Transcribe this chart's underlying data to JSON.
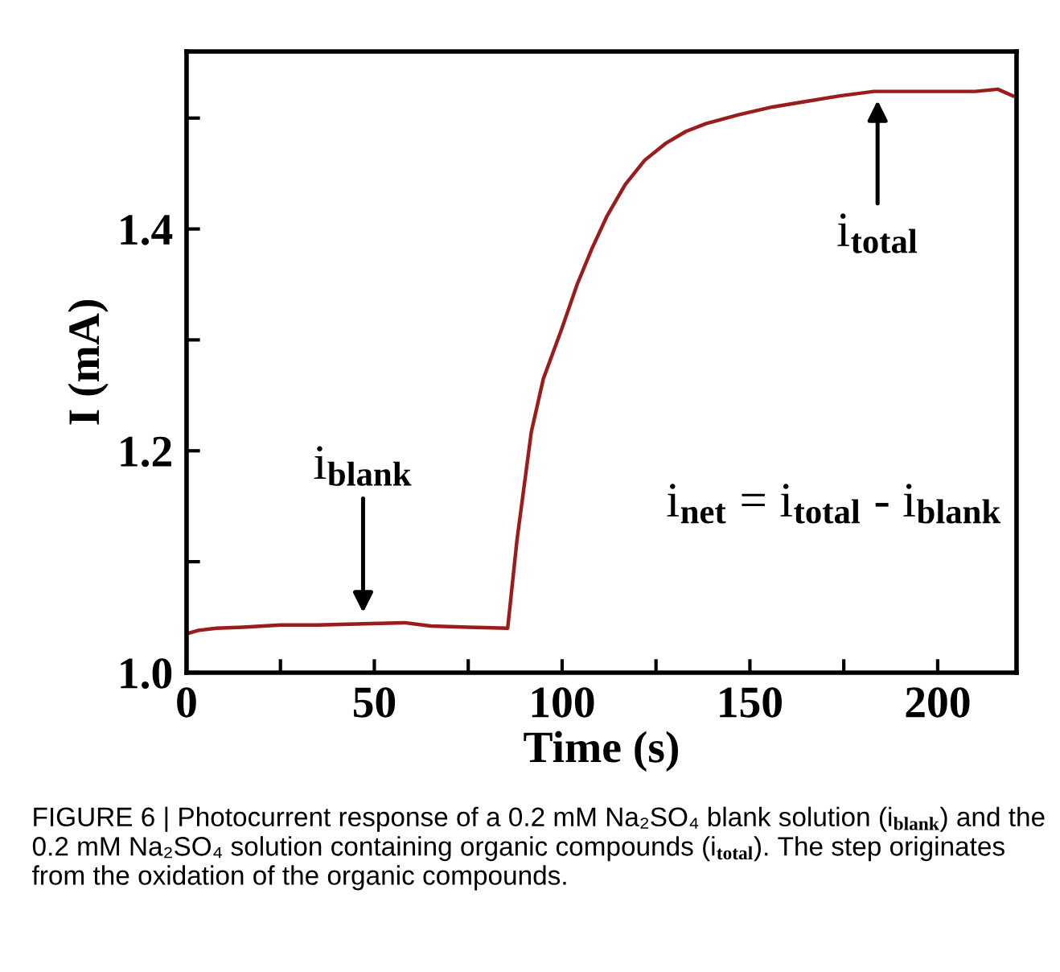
{
  "chart_data": {
    "type": "line",
    "xlabel": "Time (s)",
    "ylabel": "I (mA)",
    "x": [
      0,
      3,
      8,
      15,
      25,
      35,
      47,
      58,
      65,
      75,
      85.5,
      88,
      91.8,
      95,
      99.8,
      104,
      107.9,
      112,
      116.8,
      122,
      127.5,
      133,
      138.3,
      147,
      156,
      165,
      174,
      183,
      192,
      201,
      210,
      216,
      220
    ],
    "series": [
      {
        "color": "#9b1c1c",
        "values": [
          1.035,
          1.038,
          1.04,
          1.041,
          1.043,
          1.043,
          1.044,
          1.045,
          1.042,
          1.041,
          1.04,
          1.12,
          1.217,
          1.265,
          1.309,
          1.35,
          1.382,
          1.412,
          1.44,
          1.462,
          1.477,
          1.488,
          1.495,
          1.503,
          1.51,
          1.515,
          1.52,
          1.524,
          1.524,
          1.524,
          1.524,
          1.526,
          1.52
        ]
      }
    ],
    "xlim": [
      0,
      221
    ],
    "ylim": [
      1.0,
      1.56
    ],
    "xticks": [
      0,
      {
        "value": 25,
        "label": null
      },
      50,
      {
        "value": 75,
        "label": null
      },
      100,
      {
        "value": 125,
        "label": null
      },
      150,
      {
        "value": 175,
        "label": null
      },
      200
    ],
    "yticks": [
      {
        "value": 1.0,
        "label": "1.0"
      },
      {
        "value": 1.1,
        "label": null
      },
      1.2,
      {
        "value": 1.3,
        "label": null
      },
      1.4,
      {
        "value": 1.5,
        "label": null
      }
    ],
    "grid": false,
    "marker": "none",
    "line_style": "solid",
    "annotations": [
      {
        "text": "i$_{blank}$",
        "x": 47,
        "y": 1.045
      },
      {
        "text": "i$_{total}$",
        "x": 184,
        "y": 1.525
      },
      "i$_{net}$ = i$_{total}$ - i$_{blank}$",
      "FIGURE 6 | Photocurrent response of a 0.2 mM Na₂SO₄ blank solution (i$_{blank}$) and the 0.2 mM Na₂SO₄ solution containing organic compounds (i$_{total}$). The step originates from the oxidation of the organic compounds."
    ]
  }
}
